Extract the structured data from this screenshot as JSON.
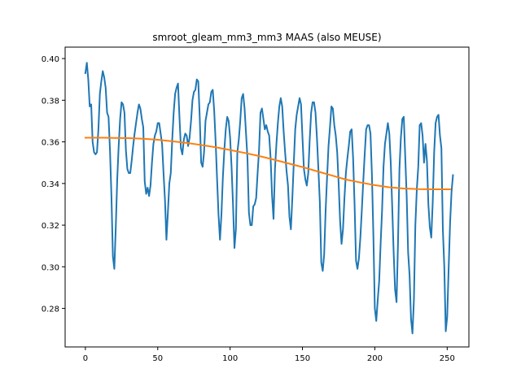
{
  "chart_data": {
    "type": "line",
    "title": "smroot_gleam_mm3_mm3 MAAS (also MEUSE)",
    "xlabel": "",
    "ylabel": "",
    "xlim": [
      -14,
      265
    ],
    "ylim": [
      0.2615,
      0.4055
    ],
    "x_ticks": [
      0,
      50,
      100,
      150,
      200,
      250
    ],
    "y_ticks": [
      0.28,
      0.3,
      0.32,
      0.34,
      0.36,
      0.38,
      0.4
    ],
    "x_tick_labels": [
      "0",
      "50",
      "100",
      "150",
      "200",
      "250"
    ],
    "y_tick_labels": [
      "0.28",
      "0.30",
      "0.32",
      "0.34",
      "0.36",
      "0.38",
      "0.40"
    ],
    "grid": false,
    "legend": null,
    "colors": {
      "series_1": "#1f77b4",
      "series_2": "#ff7f0e",
      "axes": "#000000",
      "background": "#ffffff"
    },
    "series": [
      {
        "x_start": 0,
        "x_step": 1,
        "values": [
          0.393,
          0.398,
          0.39,
          0.377,
          0.378,
          0.36,
          0.355,
          0.354,
          0.355,
          0.366,
          0.383,
          0.389,
          0.394,
          0.391,
          0.386,
          0.374,
          0.372,
          0.356,
          0.334,
          0.305,
          0.299,
          0.319,
          0.342,
          0.358,
          0.371,
          0.379,
          0.378,
          0.374,
          0.356,
          0.347,
          0.345,
          0.345,
          0.351,
          0.358,
          0.364,
          0.369,
          0.374,
          0.378,
          0.376,
          0.371,
          0.367,
          0.341,
          0.335,
          0.338,
          0.334,
          0.339,
          0.35,
          0.359,
          0.363,
          0.365,
          0.369,
          0.369,
          0.364,
          0.359,
          0.345,
          0.332,
          0.313,
          0.326,
          0.34,
          0.345,
          0.361,
          0.374,
          0.383,
          0.386,
          0.388,
          0.372,
          0.357,
          0.354,
          0.361,
          0.364,
          0.363,
          0.358,
          0.362,
          0.37,
          0.38,
          0.384,
          0.385,
          0.39,
          0.389,
          0.372,
          0.35,
          0.348,
          0.355,
          0.37,
          0.374,
          0.378,
          0.379,
          0.384,
          0.385,
          0.375,
          0.36,
          0.342,
          0.325,
          0.313,
          0.325,
          0.343,
          0.356,
          0.366,
          0.372,
          0.37,
          0.362,
          0.348,
          0.33,
          0.309,
          0.318,
          0.355,
          0.361,
          0.37,
          0.381,
          0.383,
          0.376,
          0.364,
          0.352,
          0.326,
          0.32,
          0.32,
          0.329,
          0.33,
          0.333,
          0.345,
          0.356,
          0.374,
          0.376,
          0.371,
          0.366,
          0.368,
          0.365,
          0.363,
          0.352,
          0.334,
          0.323,
          0.347,
          0.359,
          0.369,
          0.377,
          0.381,
          0.377,
          0.365,
          0.355,
          0.346,
          0.339,
          0.324,
          0.318,
          0.333,
          0.35,
          0.366,
          0.373,
          0.377,
          0.381,
          0.378,
          0.362,
          0.347,
          0.342,
          0.339,
          0.345,
          0.361,
          0.374,
          0.379,
          0.379,
          0.374,
          0.362,
          0.347,
          0.331,
          0.302,
          0.298,
          0.306,
          0.327,
          0.343,
          0.358,
          0.367,
          0.377,
          0.376,
          0.368,
          0.363,
          0.355,
          0.34,
          0.322,
          0.311,
          0.318,
          0.333,
          0.345,
          0.352,
          0.358,
          0.365,
          0.366,
          0.352,
          0.33,
          0.303,
          0.299,
          0.304,
          0.314,
          0.327,
          0.341,
          0.354,
          0.366,
          0.368,
          0.368,
          0.364,
          0.344,
          0.315,
          0.28,
          0.274,
          0.284,
          0.293,
          0.311,
          0.327,
          0.348,
          0.359,
          0.364,
          0.369,
          0.364,
          0.35,
          0.329,
          0.307,
          0.289,
          0.283,
          0.311,
          0.347,
          0.362,
          0.371,
          0.372,
          0.353,
          0.334,
          0.307,
          0.296,
          0.275,
          0.268,
          0.284,
          0.32,
          0.337,
          0.348,
          0.368,
          0.369,
          0.363,
          0.35,
          0.359,
          0.351,
          0.33,
          0.319,
          0.314,
          0.331,
          0.355,
          0.369,
          0.372,
          0.373,
          0.363,
          0.357,
          0.318,
          0.3,
          0.269,
          0.276,
          0.299,
          0.321,
          0.336,
          0.344
        ]
      },
      {
        "x_start": 0,
        "x_step": 1,
        "values": [
          0.362,
          0.362,
          0.3619,
          0.3618,
          0.3615,
          0.361,
          0.3603,
          0.3595,
          0.3585,
          0.3574,
          0.3561,
          0.3547,
          0.3532,
          0.3515,
          0.3497,
          0.3479,
          0.3459,
          0.3439,
          0.3419,
          0.3405,
          0.3392,
          0.3382,
          0.3376,
          0.3373,
          0.3372,
          0.3372
        ],
        "x_values": [
          0,
          10,
          20,
          30,
          40,
          50,
          60,
          70,
          80,
          90,
          100,
          110,
          120,
          130,
          140,
          150,
          160,
          170,
          180,
          190,
          200,
          210,
          220,
          230,
          240,
          252
        ]
      }
    ]
  }
}
